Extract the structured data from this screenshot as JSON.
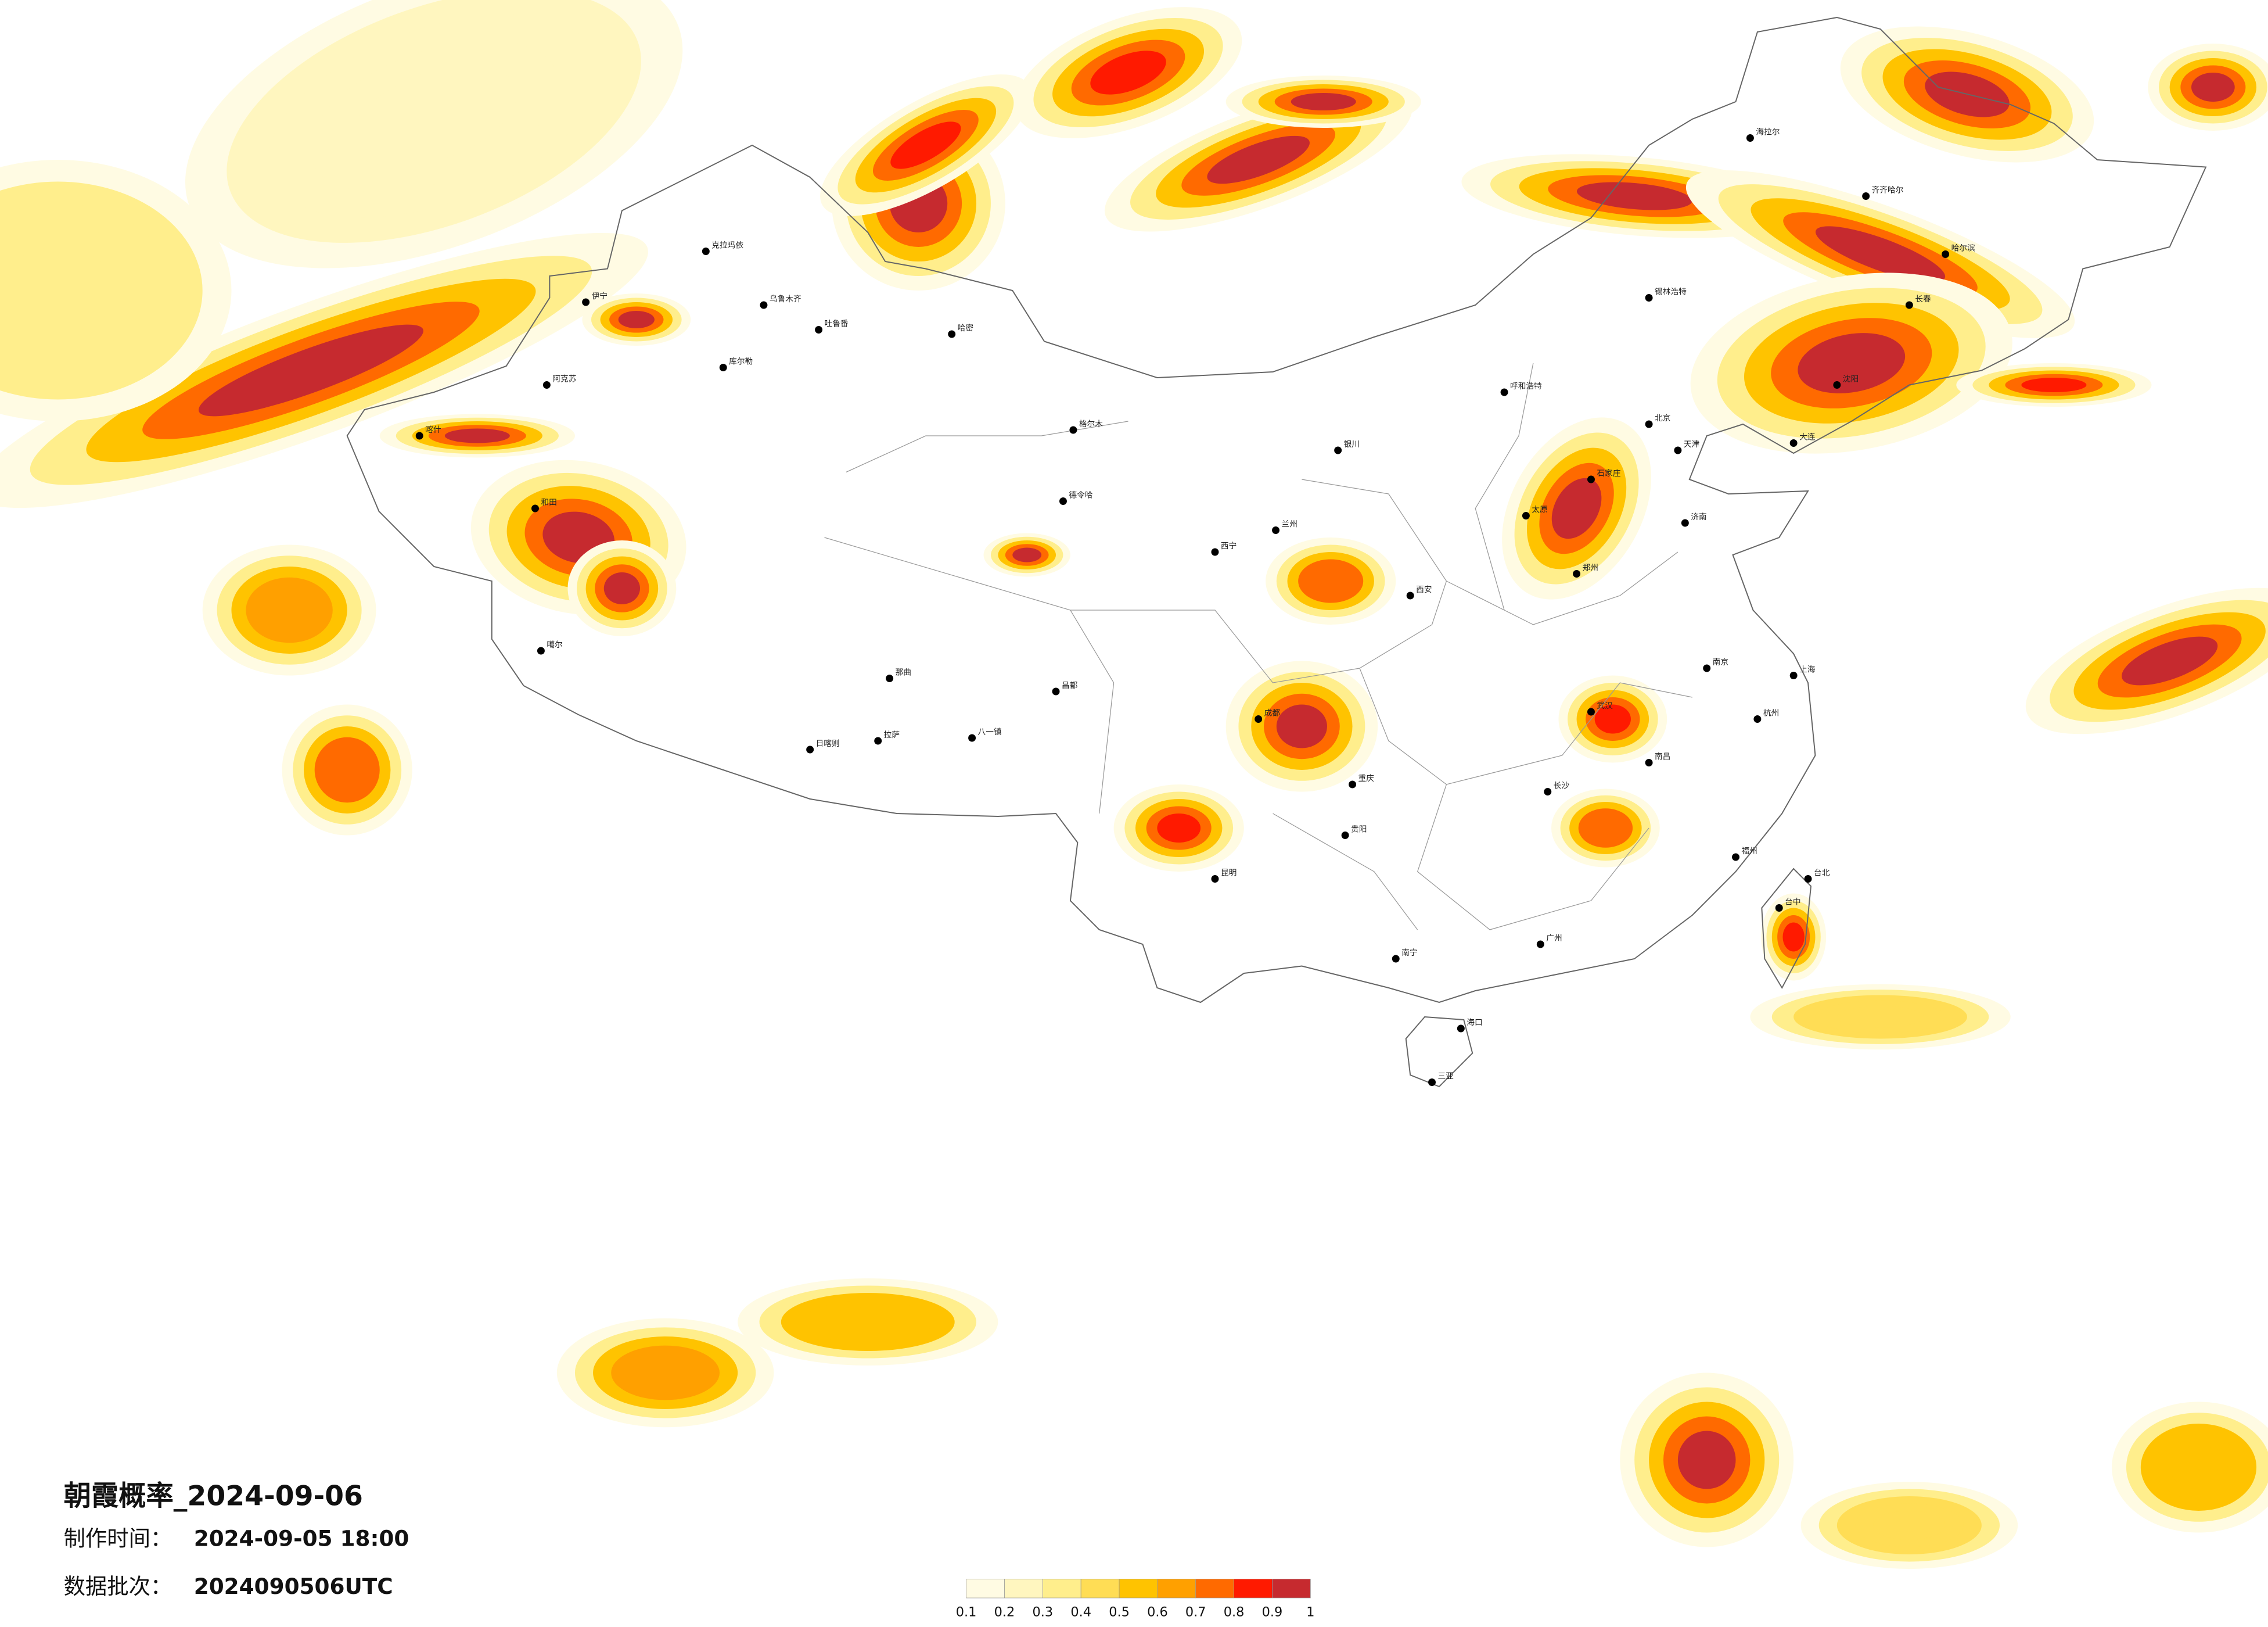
{
  "title": "朝霞概率_2024-09-06",
  "production_label": "制作时间：",
  "production_time": "2024-09-05 18:00",
  "batch_label": "数据批次：",
  "batch": "2024090506UTC",
  "legend": {
    "ticks": [
      0.1,
      0.2,
      0.3,
      0.4,
      0.5,
      0.6,
      0.7,
      0.8,
      0.9,
      1
    ],
    "colors": [
      "#fffbe3",
      "#fff6bf",
      "#ffee8c",
      "#ffdd55",
      "#ffc300",
      "#ffa000",
      "#ff6a00",
      "#ff1a00",
      "#c62a2f"
    ]
  },
  "cities": [
    "伊宁",
    "乌鲁木齐",
    "克拉玛依",
    "吐鲁番",
    "哈密",
    "库尔勒",
    "阿克苏",
    "喀什",
    "和田",
    "噶尔",
    "日喀则",
    "拉萨",
    "八一镇",
    "那曲",
    "昌都",
    "格尔木",
    "德令哈",
    "西宁",
    "兰州",
    "银川",
    "呼和浩特",
    "北京",
    "天津",
    "石家庄",
    "太原",
    "济南",
    "郑州",
    "西安",
    "成都",
    "重庆",
    "贵阳",
    "昆明",
    "南宁",
    "广州",
    "海口",
    "三亚",
    "长沙",
    "武汉",
    "南昌",
    "福州",
    "杭州",
    "上海",
    "南京",
    "沈阳",
    "大连",
    "长春",
    "哈尔滨",
    "齐齐哈尔",
    "台北",
    "台中",
    "海拉尔",
    "锡林浩特"
  ]
}
